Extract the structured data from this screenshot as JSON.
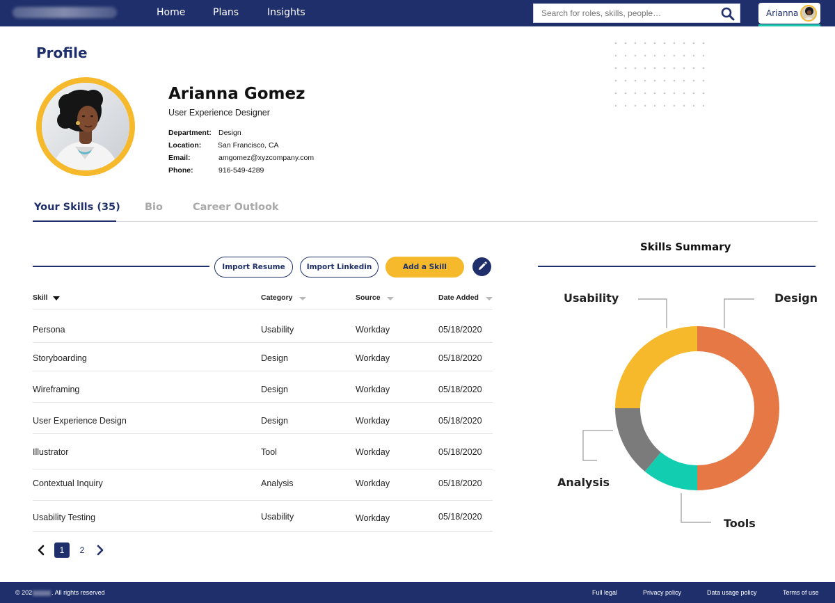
{
  "header": {
    "nav": [
      "Home",
      "Plans",
      "Insights"
    ],
    "search_placeholder": "Search for roles, skills, people…",
    "user_name": "Arianna"
  },
  "profile": {
    "page_title": "Profile",
    "name": "Arianna Gomez",
    "title": "User Experience Designer",
    "details": [
      {
        "label": "Department:",
        "value": "Design"
      },
      {
        "label": "Location:",
        "value": "San Francisco, CA"
      },
      {
        "label": "Email:",
        "value": "amgomez@xyzcompany.com"
      },
      {
        "label": "Phone:",
        "value": "916-549-4289"
      }
    ]
  },
  "tabs": [
    "Your Skills (35)",
    "Bio",
    "Career Outlook"
  ],
  "toolbar": {
    "import_resume": "Import Resume",
    "import_linkedin": "Import Linkedin",
    "add_skill": "Add a Skill"
  },
  "table": {
    "columns": [
      "Skill",
      "Category",
      "Source",
      "Date Added"
    ],
    "rows": [
      [
        "Persona",
        "Usability",
        "Workday",
        "05/18/2020"
      ],
      [
        "Storyboarding",
        "Design",
        "Workday",
        "05/18/2020"
      ],
      [
        "Wireframing",
        "Design",
        "Workday",
        "05/18/2020"
      ],
      [
        "User Experience Design",
        "Design",
        "Workday",
        "05/18/2020"
      ],
      [
        "Illustrator",
        "Tool",
        "Workday",
        "05/18/2020"
      ],
      [
        "Contextual Inquiry",
        "Analysis",
        "Workday",
        "05/18/2020"
      ],
      [
        "Usability Testing",
        "Usability",
        "Workday",
        "05/18/2020"
      ]
    ]
  },
  "pagination": {
    "pages": [
      "1",
      "2"
    ],
    "current": "1"
  },
  "summary": {
    "title": "Skills Summary",
    "segments": [
      {
        "name": "Design",
        "share": 0.5,
        "color": "#e57844"
      },
      {
        "name": "Tools",
        "share": 0.11,
        "color": "#13cdb1"
      },
      {
        "name": "Analysis",
        "share": 0.14,
        "color": "#7b7b7b"
      },
      {
        "name": "Usability",
        "share": 0.25,
        "color": "#f6b92b"
      }
    ]
  },
  "footer": {
    "copyright_prefix": "© 202",
    "copyright_suffix": ". All rights reserved",
    "links": [
      "Full legal",
      "Privacy policy",
      "Data usage policy",
      "Terms of use"
    ]
  },
  "colors": {
    "brand_navy": "#1f2f6b",
    "accent_yellow": "#f6b92b",
    "accent_teal": "#1ec9b0"
  }
}
